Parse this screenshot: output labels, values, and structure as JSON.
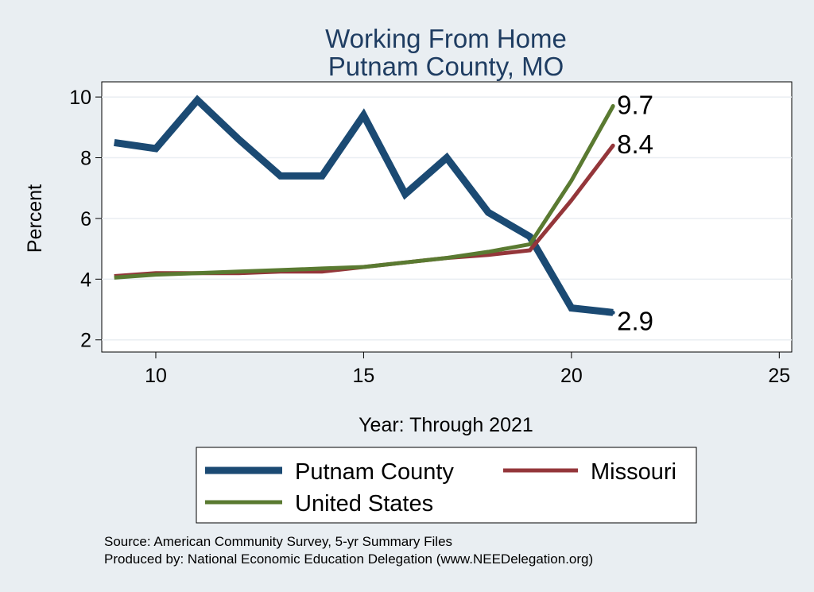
{
  "chart_data": {
    "type": "line",
    "title": [
      "Working From Home",
      "Putnam County, MO"
    ],
    "xlabel": "Year: Through 2021",
    "ylabel": "Percent",
    "xlim": [
      8.7,
      25.3
    ],
    "ylim": [
      1.6,
      10.5
    ],
    "x_ticks": [
      10,
      15,
      20,
      25
    ],
    "y_ticks": [
      2,
      4,
      6,
      8,
      10
    ],
    "grid": "horizontal",
    "legend_position": "bottom",
    "series": [
      {
        "name": "Putnam County",
        "color": "#1b4a73",
        "x": [
          9,
          10,
          11,
          12,
          13,
          14,
          15,
          16,
          17,
          18,
          19,
          20,
          21
        ],
        "values": [
          8.5,
          8.3,
          9.9,
          8.6,
          7.4,
          7.4,
          9.4,
          6.8,
          8.0,
          6.2,
          5.4,
          3.05,
          2.9
        ],
        "end_label": "2.9"
      },
      {
        "name": "Missouri",
        "color": "#94363a",
        "x": [
          9,
          10,
          11,
          12,
          13,
          14,
          15,
          16,
          17,
          18,
          19,
          20,
          21
        ],
        "values": [
          4.1,
          4.2,
          4.2,
          4.2,
          4.25,
          4.25,
          4.4,
          4.55,
          4.7,
          4.8,
          4.95,
          6.6,
          8.4
        ],
        "end_label": "8.4"
      },
      {
        "name": "United States",
        "color": "#5a7a31",
        "x": [
          9,
          10,
          11,
          12,
          13,
          14,
          15,
          16,
          17,
          18,
          19,
          20,
          21
        ],
        "values": [
          4.05,
          4.15,
          4.2,
          4.25,
          4.3,
          4.35,
          4.4,
          4.55,
          4.7,
          4.9,
          5.15,
          7.25,
          9.7
        ],
        "end_label": "9.7"
      }
    ]
  },
  "notes": {
    "source": "Source: American Community Survey, 5-yr Summary Files",
    "producer": "Produced by: National Economic Education Delegation (www.NEEDelegation.org)"
  }
}
